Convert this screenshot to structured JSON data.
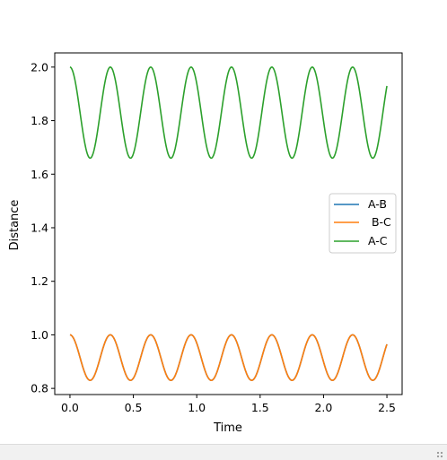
{
  "chart_data": {
    "type": "line",
    "title": "",
    "xlabel": "Time",
    "ylabel": "Distance",
    "xlim": [
      -0.12,
      2.62
    ],
    "ylim": [
      0.777,
      2.053
    ],
    "xticks": [
      0.0,
      0.5,
      1.0,
      1.5,
      2.0,
      2.5
    ],
    "xtick_labels": [
      "0.0",
      "0.5",
      "1.0",
      "1.5",
      "2.0",
      "2.5"
    ],
    "yticks": [
      0.8,
      1.0,
      1.2,
      1.4,
      1.6,
      1.8,
      2.0
    ],
    "ytick_labels": [
      "0.8",
      "1.0",
      "1.2",
      "1.4",
      "1.6",
      "1.8",
      "2.0"
    ],
    "grid": false,
    "legend_position": "center-right",
    "x_range": [
      0.0,
      2.5
    ],
    "series": [
      {
        "name": "A-B",
        "color": "#1f77b4",
        "mean": 0.915,
        "amplitude": 0.085,
        "period": 0.3185,
        "start": "maximum"
      },
      {
        "name": "B-C",
        "color": "#ff7f0e",
        "mean": 0.915,
        "amplitude": 0.085,
        "period": 0.3185,
        "start": "maximum"
      },
      {
        "name": "A-C",
        "color": "#2ca02c",
        "mean": 1.83,
        "amplitude": 0.17,
        "period": 0.3185,
        "start": "maximum"
      }
    ],
    "legend": [
      {
        "label": "A-B",
        "color": "#1f77b4"
      },
      {
        "label": " B-C",
        "color": "#ff7f0e"
      },
      {
        "label": "A-C",
        "color": "#2ca02c"
      }
    ]
  }
}
